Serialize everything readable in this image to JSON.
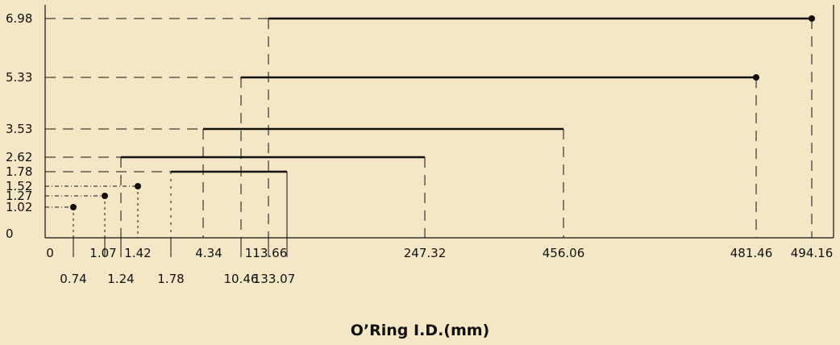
{
  "chart_data": {
    "type": "line",
    "title": "",
    "xlabel": "O’Ring I.D.(mm)",
    "ylabel": "",
    "colors": {
      "background": "#f4e7c6",
      "ink": "#111111"
    },
    "y_ticks": [
      "6.98",
      "5.33",
      "3.53",
      "2.62",
      "1.78",
      "1.52",
      "1.27",
      "1.02",
      "0"
    ],
    "x_ticks_upper": [
      "0",
      "1.07",
      "1.42",
      "4.34",
      "113.66",
      "247.32",
      "456.06",
      "481.46",
      "494.16"
    ],
    "x_ticks_lower": [
      "0.74",
      "1.24",
      "1.78",
      "10.46",
      "133.07"
    ],
    "ranges": [
      {
        "cross_section": 1.02,
        "id_min": 0.74,
        "id_max": 0.74
      },
      {
        "cross_section": 1.27,
        "id_min": 1.24,
        "id_max": 1.24
      },
      {
        "cross_section": 1.52,
        "id_min": 1.42,
        "id_max": 1.42
      },
      {
        "cross_section": 1.78,
        "id_min": 1.78,
        "id_max": 133.07
      },
      {
        "cross_section": 2.62,
        "id_min": 1.07,
        "id_max": 247.32
      },
      {
        "cross_section": 3.53,
        "id_min": 4.34,
        "id_max": 456.06
      },
      {
        "cross_section": 5.33,
        "id_min": 10.46,
        "id_max": 481.46
      },
      {
        "cross_section": 6.98,
        "id_min": 113.66,
        "id_max": 494.16
      }
    ],
    "grid": false
  }
}
